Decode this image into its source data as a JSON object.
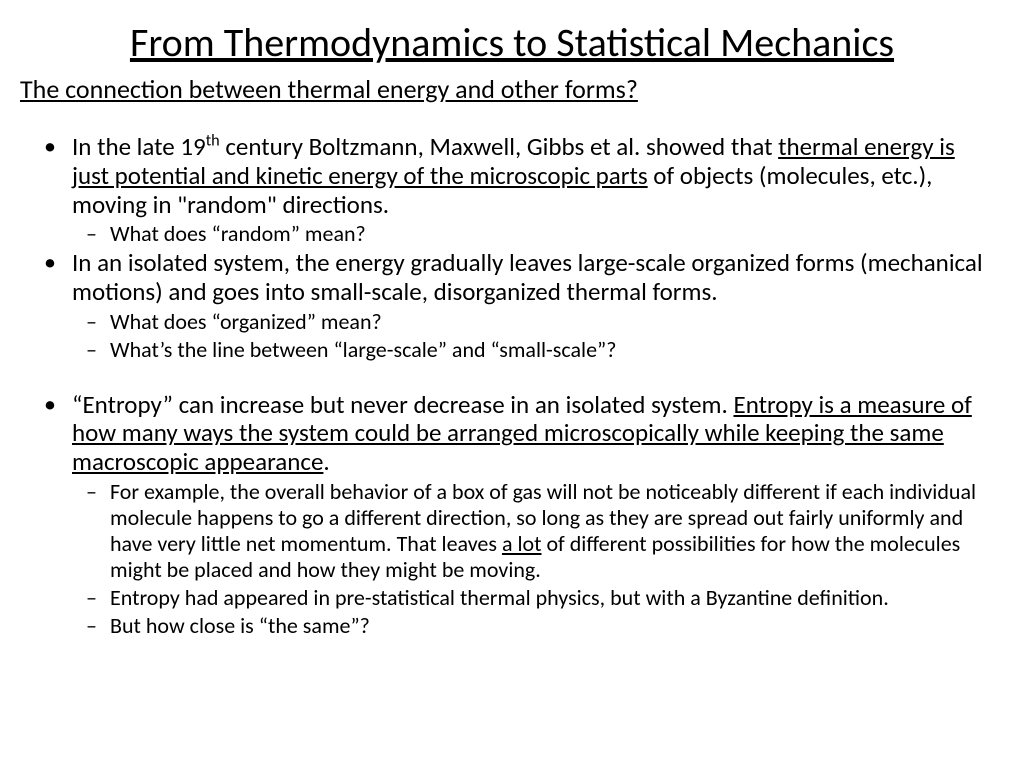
{
  "colors": {
    "background": "#ffffff",
    "text": "#000000"
  },
  "fonts": {
    "family": "Calibri",
    "title_size": 40,
    "subtitle_size": 26,
    "body_size": 25,
    "sub_size": 22
  },
  "title": "From Thermodynamics to Statistical Mechanics",
  "subtitle": "The connection between thermal energy and other forms?",
  "b1": {
    "pre": "In the late 19",
    "sup": "th",
    "mid": " century Boltzmann, Maxwell, Gibbs et al. showed that ",
    "u": "thermal energy is just potential and kinetic energy of the microscopic parts",
    "post": " of objects (molecules, etc.), moving in \"random\" directions.",
    "sub1": "What does “random” mean?"
  },
  "b2": {
    "text": "In an isolated system, the energy gradually leaves large-scale organized forms (mechanical motions) and goes into small-scale, disorganized thermal forms.",
    "sub1": "What does “organized” mean?",
    "sub2": "What’s the line between “large-scale” and “small-scale”?"
  },
  "b3": {
    "pre": "“Entropy” can increase but never decrease in an isolated system. ",
    "u": "Entropy is a measure of how many ways the system could be arranged microscopically while keeping the same macroscopic appearance",
    "post": ".",
    "sub1_pre": "For example, the overall behavior of a box of gas will not be noticeably different if each individual molecule happens to go a different direction, so long as they are spread out fairly uniformly and have very little net momentum. That leaves ",
    "sub1_u": "a lot",
    "sub1_post": " of different possibilities for how the molecules might be placed and how they might be moving.",
    "sub2": "Entropy had appeared in pre-statistical thermal physics, but with a Byzantine definition.",
    "sub3": "But how close is “the same”?"
  }
}
